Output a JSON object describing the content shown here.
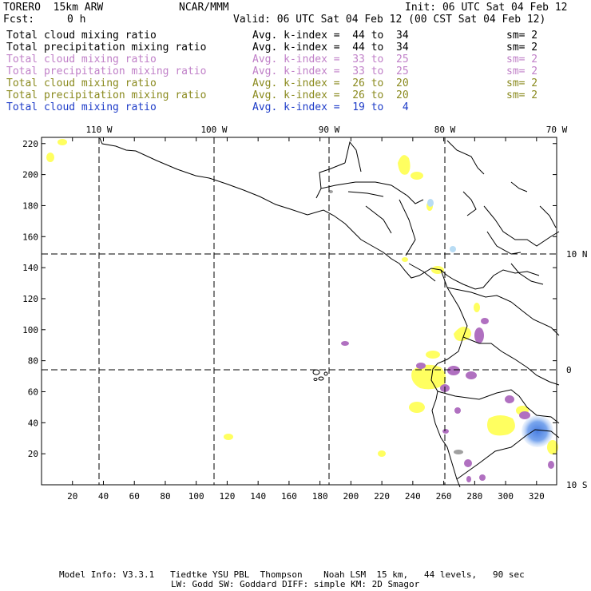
{
  "header": {
    "model": "TORERO  15km ARW",
    "org": "NCAR/MMM",
    "init": "Init: 06 UTC Sat 04 Feb 12",
    "fcst_label": "Fcst:",
    "fcst_value": "0 h",
    "valid": "Valid: 06 UTC Sat 04 Feb 12 (00 CST Sat 04 Feb 12)"
  },
  "legend": [
    {
      "field": "Total cloud mixing ratio",
      "index": "Avg. k-index =  44 to  34",
      "sm": "sm= 2",
      "color": "#000000"
    },
    {
      "field": "Total precipitation mixing ratio",
      "index": "Avg. k-index =  44 to  34",
      "sm": "sm= 2",
      "color": "#000000"
    },
    {
      "field": "Total cloud mixing ratio",
      "index": "Avg. k-index =  33 to  25",
      "sm": "sm= 2",
      "color": "#c080c8"
    },
    {
      "field": "Total precipitation mixing ratio",
      "index": "Avg. k-index =  33 to  25",
      "sm": "sm= 2",
      "color": "#c080c8"
    },
    {
      "field": "Total cloud mixing ratio",
      "index": "Avg. k-index =  26 to  20",
      "sm": "sm= 2",
      "color": "#8a8a1e"
    },
    {
      "field": "Total precipitation mixing ratio",
      "index": "Avg. k-index =  26 to  20",
      "sm": "sm= 2",
      "color": "#8a8a1e"
    },
    {
      "field": "Total cloud mixing ratio",
      "index": "Avg. k-index =  19 to   4",
      "sm": "",
      "color": "#1e3cc8"
    }
  ],
  "map": {
    "lon_labels": [
      "110 W",
      "100 W",
      "90 W",
      "80 W",
      "70 W"
    ],
    "lat_labels": [
      "10 N",
      "0",
      "10 S"
    ],
    "x_ticks": [
      "20",
      "40",
      "60",
      "80",
      "100",
      "120",
      "140",
      "160",
      "180",
      "200",
      "220",
      "240",
      "260",
      "280",
      "300",
      "320"
    ],
    "y_ticks": [
      "220",
      "200",
      "180",
      "160",
      "140",
      "120",
      "100",
      "80",
      "60",
      "40",
      "20"
    ],
    "colors": {
      "yellow": "#ffff60",
      "purple": "#b070c0",
      "gray": "#a0a0a0",
      "lightblue": "#b8dcf4",
      "blue": "#5a8ee8"
    }
  },
  "footer": {
    "line1": "Model Info: V3.3.1   Tiedtke YSU PBL  Thompson    Noah LSM  15 km,   44 levels,   90 sec",
    "line2": "LW: Godd SW: Goddard DIFF: simple KM: 2D Smagor"
  }
}
